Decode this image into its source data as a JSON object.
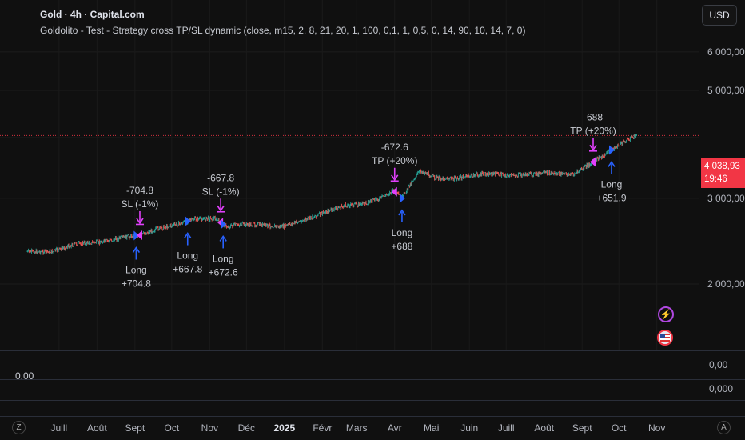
{
  "header": {
    "title": "Gold · 4h · Capital.com",
    "subtitle": "Goldolito - Test - Strategy cross  TP/SL dynamic (close, m15, 2, 8, 21, 20, 1, 100, 0,1, 1, 0,5, 0, 14, 90, 10, 14, 7, 0)",
    "currency_button": "USD"
  },
  "last_price": {
    "value": "4 038,93",
    "countdown": "19:46",
    "color": "#f23645"
  },
  "oscillator": {
    "left_value": "0.00",
    "axis_labels": [
      "0,00",
      "0,000"
    ]
  },
  "zoom": {
    "left": "Z",
    "right": "A"
  },
  "icons": {
    "alert": "lightning-icon",
    "event": "us-flag-icon"
  },
  "colors": {
    "background": "#101010",
    "candle_up": "#26a69a",
    "candle_down": "#ef5350",
    "entry_arrow": "#2962ff",
    "exit_arrow": "#e040fb",
    "price_line": "#f23645"
  },
  "chart_data": {
    "type": "line",
    "title": "Gold · 4h · Capital.com",
    "xlabel": "",
    "ylabel": "",
    "y_scale": "log",
    "ylim": [
      2150,
      6500
    ],
    "y_ticks": [
      2000,
      3000,
      4000,
      5000,
      6000
    ],
    "y_tick_labels": [
      "2 000,00",
      "3 000,00",
      "",
      "5 000,00",
      "6 000,00"
    ],
    "x_range": [
      "2024-06-05",
      "2025-11-26"
    ],
    "x_ticks": [
      {
        "date": "2024-07-01",
        "label": "Juill"
      },
      {
        "date": "2024-08-01",
        "label": "Août"
      },
      {
        "date": "2024-09-01",
        "label": "Sept"
      },
      {
        "date": "2024-10-01",
        "label": "Oct"
      },
      {
        "date": "2024-11-01",
        "label": "Nov"
      },
      {
        "date": "2024-12-01",
        "label": "Déc"
      },
      {
        "date": "2025-01-01",
        "label": "2025"
      },
      {
        "date": "2025-02-01",
        "label": "Févr"
      },
      {
        "date": "2025-03-01",
        "label": "Mars"
      },
      {
        "date": "2025-04-01",
        "label": "Avr"
      },
      {
        "date": "2025-05-01",
        "label": "Mai"
      },
      {
        "date": "2025-06-01",
        "label": "Juin"
      },
      {
        "date": "2025-07-01",
        "label": "Juill"
      },
      {
        "date": "2025-08-01",
        "label": "Août"
      },
      {
        "date": "2025-09-01",
        "label": "Sept"
      },
      {
        "date": "2025-10-01",
        "label": "Oct"
      },
      {
        "date": "2025-11-01",
        "label": "Nov"
      }
    ],
    "series": [
      {
        "x": [
          "2024-06-05",
          "2024-06-25",
          "2024-07-15",
          "2024-08-05",
          "2024-08-25",
          "2024-09-05",
          "2024-09-20",
          "2024-10-05",
          "2024-10-20",
          "2024-11-05",
          "2024-11-15",
          "2024-11-25",
          "2024-12-10",
          "2024-12-30",
          "2025-01-20",
          "2025-02-05",
          "2025-02-20",
          "2025-03-05",
          "2025-03-20",
          "2025-03-31",
          "2025-04-07",
          "2025-04-15",
          "2025-04-22",
          "2025-05-05",
          "2025-05-20",
          "2025-06-05",
          "2025-06-20",
          "2025-07-05",
          "2025-07-20",
          "2025-08-05",
          "2025-08-25",
          "2025-09-05",
          "2025-09-20",
          "2025-10-01",
          "2025-10-08",
          "2025-10-16"
        ],
        "y": [
          2330,
          2330,
          2420,
          2440,
          2500,
          2520,
          2600,
          2650,
          2720,
          2730,
          2620,
          2650,
          2650,
          2620,
          2720,
          2820,
          2900,
          2920,
          3000,
          3110,
          3000,
          3250,
          3420,
          3300,
          3290,
          3350,
          3370,
          3340,
          3360,
          3380,
          3360,
          3500,
          3700,
          3860,
          3960,
          4039
        ]
      }
    ],
    "last_price": 4038.93,
    "trades": [
      {
        "side": "Long",
        "entry_date": "2024-09-02",
        "entry_label": [
          "Long",
          "+704.8"
        ],
        "exit_date": "2024-09-05",
        "exit_label": [
          "-704.8",
          "SL (-1%)"
        ]
      },
      {
        "side": "Long",
        "entry_date": "2024-10-14",
        "entry_label": [
          "Long",
          "+667.8"
        ],
        "exit_date": "2024-11-10",
        "exit_label": [
          "-667.8",
          "SL (-1%)"
        ]
      },
      {
        "side": "Long",
        "entry_date": "2024-11-12",
        "entry_label": [
          "Long",
          "+672.6"
        ],
        "exit_date": "2025-04-01",
        "exit_label": [
          "-672.6",
          "TP (+20%)"
        ]
      },
      {
        "side": "Long",
        "entry_date": "2025-04-07",
        "entry_label": [
          "Long",
          "+688"
        ],
        "exit_date": "2025-09-10",
        "exit_label": [
          "-688",
          "TP (+20%)"
        ]
      },
      {
        "side": "Long",
        "entry_date": "2025-09-25",
        "entry_label": [
          "Long",
          "+651.9"
        ],
        "exit_date": null,
        "exit_label": null
      }
    ]
  }
}
